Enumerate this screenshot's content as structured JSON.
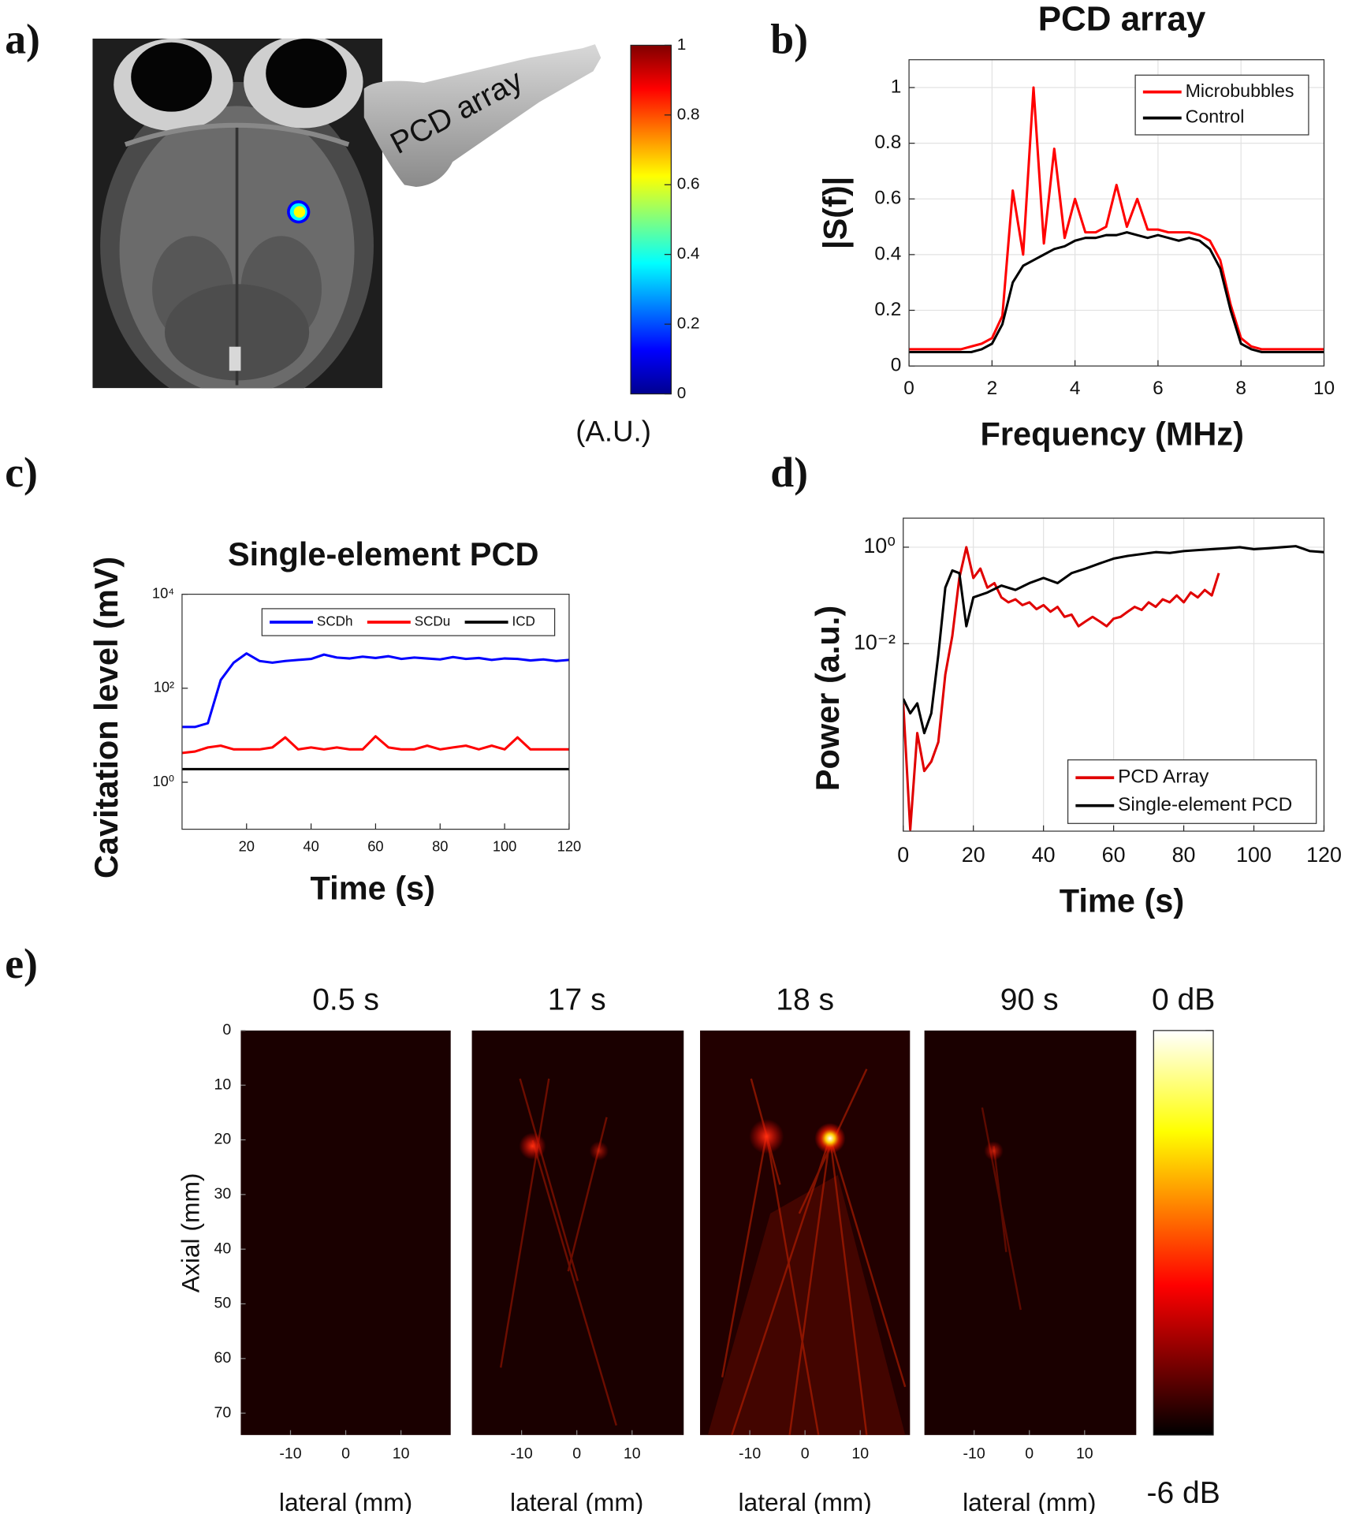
{
  "chart_data": [
    {
      "type": "image",
      "label": "a)",
      "annotation": "PCD array",
      "colorbar": {
        "colormap": "jet",
        "clim": [
          0,
          1
        ],
        "ticks": [
          0,
          0.2,
          0.4,
          0.6,
          0.8,
          1
        ],
        "label": "(A.U.)"
      }
    },
    {
      "type": "line",
      "label": "b)",
      "title": "PCD array",
      "xlabel": "Frequency (MHz)",
      "ylabel": "|S(f)|",
      "xlim": [
        0,
        10
      ],
      "ylim": [
        0,
        1.1
      ],
      "xticks": [
        0,
        2,
        4,
        6,
        8,
        10
      ],
      "yticks": [
        0,
        0.2,
        0.4,
        0.6,
        0.8,
        1
      ],
      "grid": true,
      "legend": "upper right",
      "x": [
        0,
        0.25,
        0.5,
        0.75,
        1,
        1.25,
        1.5,
        1.75,
        2,
        2.25,
        2.5,
        2.75,
        3,
        3.25,
        3.5,
        3.75,
        4,
        4.25,
        4.5,
        4.75,
        5,
        5.25,
        5.5,
        5.75,
        6,
        6.25,
        6.5,
        6.75,
        7,
        7.25,
        7.5,
        7.75,
        8,
        8.25,
        8.5,
        8.75,
        9,
        9.25,
        9.5,
        9.75,
        10
      ],
      "series": [
        {
          "name": "Microbubbles",
          "color": "#ff0000",
          "values": [
            0.06,
            0.06,
            0.06,
            0.06,
            0.06,
            0.06,
            0.07,
            0.08,
            0.1,
            0.18,
            0.63,
            0.4,
            1.0,
            0.44,
            0.78,
            0.46,
            0.6,
            0.48,
            0.48,
            0.5,
            0.65,
            0.5,
            0.6,
            0.49,
            0.49,
            0.48,
            0.48,
            0.48,
            0.47,
            0.45,
            0.38,
            0.22,
            0.1,
            0.07,
            0.06,
            0.06,
            0.06,
            0.06,
            0.06,
            0.06,
            0.06
          ]
        },
        {
          "name": "Control",
          "color": "#000000",
          "values": [
            0.05,
            0.05,
            0.05,
            0.05,
            0.05,
            0.05,
            0.05,
            0.06,
            0.08,
            0.15,
            0.3,
            0.36,
            0.38,
            0.4,
            0.42,
            0.43,
            0.45,
            0.46,
            0.46,
            0.47,
            0.47,
            0.48,
            0.47,
            0.46,
            0.47,
            0.46,
            0.45,
            0.46,
            0.45,
            0.42,
            0.35,
            0.2,
            0.08,
            0.06,
            0.05,
            0.05,
            0.05,
            0.05,
            0.05,
            0.05,
            0.05
          ]
        }
      ]
    },
    {
      "type": "line",
      "label": "c)",
      "title": "Single-element PCD",
      "xlabel": "Time (s)",
      "ylabel": "Cavitation level (mV)",
      "xlim": [
        0,
        120
      ],
      "ylim": [
        0.1,
        10000
      ],
      "yscale": "log",
      "xticks": [
        20,
        40,
        60,
        80,
        100,
        120
      ],
      "yticks": [
        {
          "value": 1,
          "label": "10⁰"
        },
        {
          "value": 100,
          "label": "10²"
        },
        {
          "value": 10000,
          "label": "10⁴"
        }
      ],
      "grid": false,
      "legend": "upper right",
      "x": [
        0,
        4,
        8,
        12,
        16,
        20,
        24,
        28,
        32,
        36,
        40,
        44,
        48,
        52,
        56,
        60,
        64,
        68,
        72,
        76,
        80,
        84,
        88,
        92,
        96,
        100,
        104,
        108,
        112,
        116,
        120
      ],
      "series": [
        {
          "name": "SCDh",
          "color": "#0000ff",
          "values": [
            15,
            15,
            18,
            150,
            350,
            550,
            380,
            350,
            380,
            400,
            420,
            520,
            450,
            430,
            470,
            440,
            480,
            420,
            450,
            430,
            410,
            460,
            420,
            440,
            400,
            430,
            420,
            390,
            410,
            380,
            400
          ]
        },
        {
          "name": "SCDu",
          "color": "#ff0000",
          "values": [
            4.2,
            4.5,
            5.5,
            6,
            5,
            5,
            5,
            5.5,
            9,
            5,
            5.5,
            5,
            5.5,
            5,
            5,
            9.5,
            5.5,
            5,
            5,
            6,
            5,
            5.5,
            6,
            5,
            6,
            5,
            9,
            5,
            5,
            5,
            5
          ]
        },
        {
          "name": "ICD",
          "color": "#000000",
          "values": [
            1.9,
            1.9,
            1.9,
            1.9,
            1.9,
            1.9,
            1.9,
            1.9,
            1.9,
            1.9,
            1.9,
            1.9,
            1.9,
            1.9,
            1.9,
            1.9,
            1.9,
            1.9,
            1.9,
            1.9,
            1.9,
            1.9,
            1.9,
            1.9,
            1.9,
            1.9,
            1.9,
            1.9,
            1.9,
            1.9,
            1.9
          ]
        }
      ]
    },
    {
      "type": "line",
      "label": "d)",
      "xlabel": "Time (s)",
      "ylabel": "Power (a.u.)",
      "xlim": [
        0,
        120
      ],
      "ylim": [
        1.3e-06,
        4
      ],
      "yscale": "log",
      "xticks": [
        0,
        20,
        40,
        60,
        80,
        100,
        120
      ],
      "yticks": [
        {
          "value": 1,
          "label": "10⁰"
        },
        {
          "value": 0.01,
          "label": "10⁻²"
        }
      ],
      "grid": true,
      "legend": "lower right",
      "series": [
        {
          "name": "PCD Array",
          "color": "#e00000",
          "x": [
            0,
            2,
            4,
            6,
            8,
            10,
            12,
            14,
            16,
            18,
            20,
            22,
            24,
            26,
            28,
            30,
            32,
            34,
            36,
            38,
            40,
            42,
            44,
            46,
            48,
            50,
            52,
            54,
            56,
            58,
            60,
            62,
            64,
            66,
            68,
            70,
            72,
            74,
            76,
            78,
            80,
            82,
            84,
            86,
            88,
            90
          ],
          "values": [
            0.00058,
            1.4e-06,
            0.00014,
            2.3e-05,
            3.6e-05,
            9.1e-05,
            0.0023,
            0.0145,
            0.23,
            1.0,
            0.23,
            0.36,
            0.145,
            0.18,
            0.091,
            0.072,
            0.083,
            0.063,
            0.072,
            0.052,
            0.063,
            0.046,
            0.058,
            0.036,
            0.04,
            0.023,
            0.029,
            0.036,
            0.029,
            0.023,
            0.033,
            0.036,
            0.046,
            0.058,
            0.05,
            0.072,
            0.058,
            0.083,
            0.072,
            0.1,
            0.072,
            0.115,
            0.091,
            0.13,
            0.1,
            0.29
          ]
        },
        {
          "name": "Single-element PCD",
          "color": "#000000",
          "x": [
            0,
            2,
            4,
            6,
            8,
            10,
            12,
            14,
            16,
            18,
            20,
            24,
            28,
            32,
            36,
            40,
            44,
            48,
            52,
            56,
            60,
            64,
            68,
            72,
            76,
            80,
            84,
            88,
            92,
            96,
            100,
            104,
            108,
            112,
            116,
            120
          ],
          "values": [
            0.00072,
            0.00036,
            0.00058,
            0.00014,
            0.00036,
            0.0058,
            0.145,
            0.33,
            0.29,
            0.023,
            0.091,
            0.115,
            0.16,
            0.13,
            0.18,
            0.23,
            0.18,
            0.29,
            0.36,
            0.46,
            0.58,
            0.66,
            0.72,
            0.79,
            0.76,
            0.83,
            0.87,
            0.91,
            0.95,
            1.0,
            0.91,
            0.95,
            1.0,
            1.05,
            0.83,
            0.79
          ]
        }
      ]
    },
    {
      "type": "heatmap",
      "label": "e)",
      "xlabel": "lateral (mm)",
      "ylabel": "Axial (mm)",
      "panels": [
        {
          "title": "0.5 s"
        },
        {
          "title": "17 s"
        },
        {
          "title": "18 s"
        },
        {
          "title": "90 s"
        }
      ],
      "xlim": [
        -19,
        19
      ],
      "ylim": [
        74,
        0
      ],
      "xticks": [
        -10,
        0,
        10
      ],
      "yticks": [
        0,
        10,
        20,
        30,
        40,
        50,
        60,
        70
      ],
      "colorbar": {
        "colormap": "hot",
        "clim": [
          -6,
          0
        ],
        "ticks": [
          {
            "value": 0,
            "label": "0 dB"
          },
          {
            "value": -6,
            "label": "-6 dB"
          }
        ]
      }
    }
  ]
}
